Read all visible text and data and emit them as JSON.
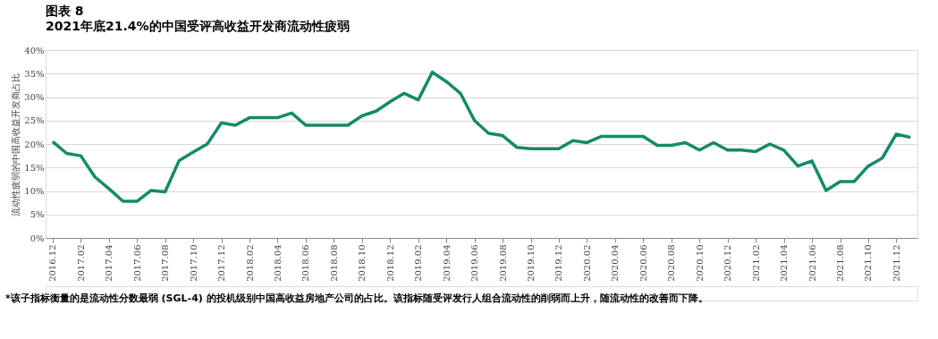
{
  "chart_data": {
    "type": "line",
    "title": "图表 8",
    "subtitle": "2021年底21.4%的中国受评高收益开发商流动性疲弱",
    "ylabel": "流动性疲弱的中国高收益开发商占比",
    "categories": [
      "2016.12",
      null,
      "2017.02",
      null,
      "2017.04",
      null,
      "2017.06",
      null,
      "2017.08",
      null,
      "2017.10",
      null,
      "2017.12",
      null,
      "2018.02",
      null,
      "2018.04",
      null,
      "2018.06",
      null,
      "2018.08",
      null,
      "2018.10",
      null,
      "2018.12",
      null,
      "2019.02",
      null,
      "2019.04",
      null,
      "2019.06",
      null,
      "2019.08",
      null,
      "2019.10",
      null,
      "2019.12",
      null,
      "2020.02",
      null,
      "2020.04",
      null,
      "2020.06",
      null,
      "2020.08",
      null,
      "2020.10",
      null,
      "2020.12",
      null,
      "2021.02",
      null,
      "2021.04",
      null,
      "2021.06",
      null,
      "2021.08",
      null,
      "2021.10",
      null,
      "2021.12",
      null
    ],
    "series": [
      {
        "color": "#138a6a",
        "values": [
          20.5,
          18,
          17.5,
          13,
          10.5,
          7.8,
          7.8,
          10.1,
          9.8,
          16.5,
          18.3,
          20,
          24.5,
          24,
          25.6,
          25.6,
          25.6,
          26.6,
          24,
          24,
          24,
          24,
          26,
          27,
          29,
          30.8,
          29.4,
          35.3,
          33.3,
          30.8,
          25,
          22.3,
          21.8,
          19.3,
          19,
          19,
          19,
          20.7,
          20.3,
          21.6,
          21.6,
          21.6,
          21.6,
          19.7,
          19.7,
          20.3,
          18.7,
          20.3,
          18.7,
          18.7,
          18.4,
          20,
          18.7,
          15.3,
          16.4,
          10.1,
          12,
          12,
          15.3,
          17,
          22.1,
          21.4
        ]
      }
    ],
    "ylim": [
      0,
      40
    ],
    "yticks": [
      {
        "value": 0,
        "label": "0%"
      },
      {
        "value": 5,
        "label": "5%"
      },
      {
        "value": 10,
        "label": "10%"
      },
      {
        "value": 15,
        "label": "15%"
      },
      {
        "value": 20,
        "label": "20%"
      },
      {
        "value": 25,
        "label": "25%"
      },
      {
        "value": 30,
        "label": "30%"
      },
      {
        "value": 35,
        "label": "35%"
      },
      {
        "value": 40,
        "label": "40%"
      }
    ],
    "grid": "y",
    "legend": false,
    "marker": "none",
    "line_style": "solid",
    "annotations": [
      "*该子指标衡量的是流动性分数最弱 (SGL-4) 的投机级别中国高收益房地产公司的占比。该指标随受评发行人组合流动性的削弱而上升，随流动性的改善而下降。"
    ]
  }
}
